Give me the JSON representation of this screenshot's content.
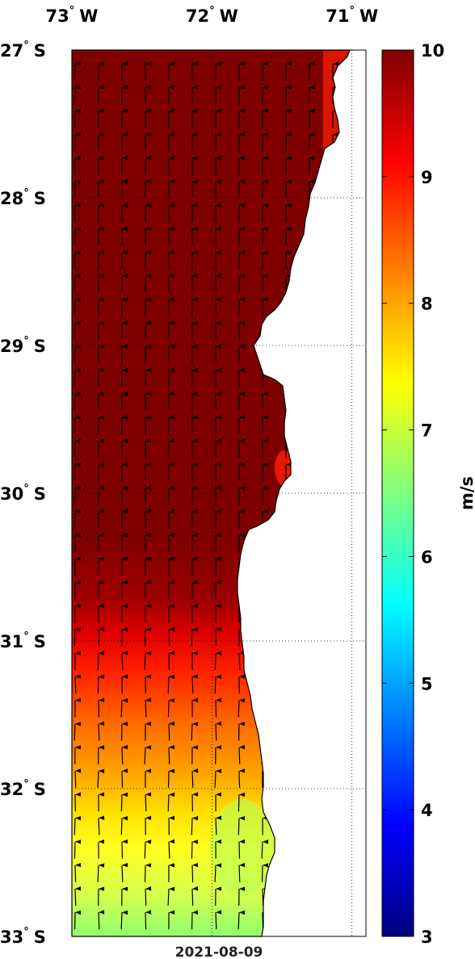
{
  "map": {
    "date": "2021-08-09",
    "lon_labels": [
      {
        "deg": "73",
        "hemi": "W",
        "value": -73
      },
      {
        "deg": "72",
        "hemi": "W",
        "value": -72
      },
      {
        "deg": "71",
        "hemi": "W",
        "value": -71
      }
    ],
    "lat_labels": [
      {
        "deg": "27",
        "hemi": "S",
        "value": -27
      },
      {
        "deg": "28",
        "hemi": "S",
        "value": -28
      },
      {
        "deg": "29",
        "hemi": "S",
        "value": -29
      },
      {
        "deg": "30",
        "hemi": "S",
        "value": -30
      },
      {
        "deg": "31",
        "hemi": "S",
        "value": -31
      },
      {
        "deg": "32",
        "hemi": "S",
        "value": -32
      },
      {
        "deg": "33",
        "hemi": "S",
        "value": -33
      }
    ],
    "lon_range": [
      -73.0,
      -70.9
    ],
    "lat_range": [
      -33.0,
      -27.0
    ],
    "grid": "dotted",
    "land_color": "#ffffff",
    "vector_color": "#000000",
    "vector_direction": "north (southerly wind)",
    "colorbar": {
      "unit": "m/s",
      "min": 3,
      "max": 10,
      "ticks": [
        "3",
        "4",
        "5",
        "6",
        "7",
        "8",
        "9",
        "10"
      ],
      "colormap": "jet",
      "colors": [
        "#00007f",
        "#0000ff",
        "#007fff",
        "#00ffff",
        "#7fff7f",
        "#ffff00",
        "#ff7f00",
        "#ff0000",
        "#7f0000"
      ]
    }
  },
  "chart_data": {
    "type": "heatmap",
    "title": "",
    "variable": "wind speed",
    "unit": "m/s",
    "xlabel": "",
    "ylabel": "",
    "xlim": [
      -73.0,
      -70.9
    ],
    "ylim": [
      -33.0,
      -27.0
    ],
    "zlim": [
      3,
      10
    ],
    "speed_by_latitude": [
      {
        "lat": -27.0,
        "speed": 10.0
      },
      {
        "lat": -28.0,
        "speed": 10.0
      },
      {
        "lat": -29.0,
        "speed": 10.0
      },
      {
        "lat": -30.0,
        "speed": 10.0
      },
      {
        "lat": -30.5,
        "speed": 9.6
      },
      {
        "lat": -31.0,
        "speed": 9.0
      },
      {
        "lat": -31.5,
        "speed": 8.4
      },
      {
        "lat": -32.0,
        "speed": 7.4
      },
      {
        "lat": -32.5,
        "speed": 7.0
      },
      {
        "lat": -33.0,
        "speed": 6.4
      }
    ]
  }
}
